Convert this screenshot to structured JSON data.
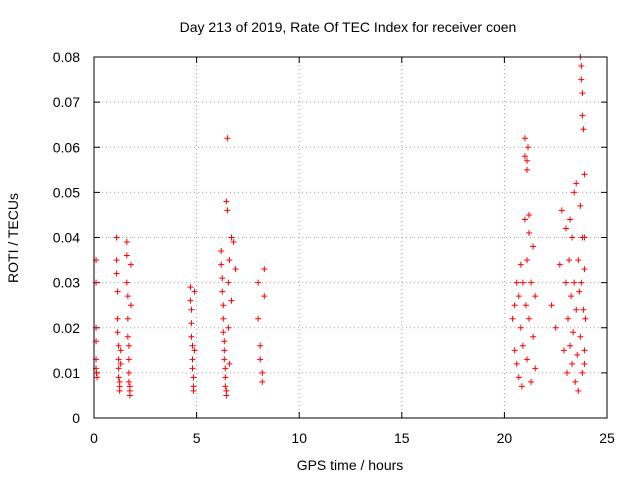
{
  "chart_data": {
    "type": "scatter",
    "title": "Day 213 of 2019, Rate Of TEC Index for receiver coen",
    "xlabel": "GPS time / hours",
    "ylabel": "ROTI / TECUs",
    "xlim": [
      0,
      25
    ],
    "ylim": [
      0,
      0.08
    ],
    "xticks": [
      0,
      5,
      10,
      15,
      20,
      25
    ],
    "yticks": [
      0,
      0.01,
      0.02,
      0.03,
      0.04,
      0.05,
      0.06,
      0.07,
      0.08
    ],
    "xtick_labels": [
      "0",
      "5",
      "10",
      "15",
      "20",
      "25"
    ],
    "ytick_labels": [
      "0",
      "0.01",
      "0.02",
      "0.03",
      "0.04",
      "0.05",
      "0.06",
      "0.07",
      "0.08"
    ],
    "grid": true,
    "marker": "+",
    "series_color": "#ff0000",
    "series": [
      {
        "name": "ROTI",
        "x": [
          0.1,
          0.1,
          0.1,
          0.1,
          0.1,
          0.1,
          0.12,
          0.15,
          1.1,
          1.1,
          1.1,
          1.15,
          1.15,
          1.15,
          1.2,
          1.2,
          1.2,
          1.2,
          1.25,
          1.25,
          1.25,
          1.3,
          1.3,
          1.6,
          1.6,
          1.6,
          1.65,
          1.65,
          1.65,
          1.7,
          1.7,
          1.7,
          1.7,
          1.75,
          1.75,
          1.75,
          1.8,
          1.8,
          4.7,
          4.7,
          4.75,
          4.75,
          4.75,
          4.8,
          4.8,
          4.8,
          4.85,
          4.85,
          4.85,
          4.9,
          4.9,
          6.2,
          6.2,
          6.25,
          6.25,
          6.3,
          6.3,
          6.3,
          6.35,
          6.35,
          6.35,
          6.4,
          6.4,
          6.4,
          6.45,
          6.45,
          6.45,
          6.5,
          6.5,
          6.55,
          6.55,
          6.6,
          6.6,
          6.7,
          6.7,
          6.8,
          6.9,
          8.0,
          8.0,
          8.1,
          8.1,
          8.2,
          8.2,
          8.3,
          8.3,
          20.4,
          20.5,
          20.5,
          20.6,
          20.6,
          20.7,
          20.7,
          20.8,
          20.8,
          20.85,
          20.9,
          20.9,
          21.0,
          21.0,
          21.0,
          21.05,
          21.1,
          21.1,
          21.2,
          21.2,
          21.3,
          21.3,
          21.4,
          21.4,
          21.5,
          21.5,
          22.3,
          22.5,
          22.7,
          22.8,
          22.9,
          23.0,
          23.0,
          23.05,
          23.1,
          23.15,
          23.2,
          23.2,
          23.25,
          23.3,
          23.3,
          23.35,
          23.4,
          23.4,
          23.45,
          23.5,
          23.5,
          23.55,
          23.6,
          23.6,
          23.65,
          23.7,
          23.7,
          23.75,
          23.8,
          23.8,
          23.85,
          23.9,
          23.9,
          23.9,
          23.95,
          21.1,
          21.1,
          21.15,
          21.2,
          23.7,
          23.75,
          23.75,
          23.8,
          23.8,
          23.85,
          23.9,
          23.9
        ],
        "y": [
          0.035,
          0.03,
          0.02,
          0.017,
          0.013,
          0.011,
          0.01,
          0.009,
          0.04,
          0.035,
          0.032,
          0.028,
          0.022,
          0.019,
          0.016,
          0.013,
          0.011,
          0.009,
          0.008,
          0.007,
          0.006,
          0.012,
          0.015,
          0.039,
          0.036,
          0.03,
          0.027,
          0.022,
          0.018,
          0.016,
          0.013,
          0.01,
          0.008,
          0.007,
          0.006,
          0.005,
          0.034,
          0.025,
          0.029,
          0.026,
          0.024,
          0.021,
          0.018,
          0.016,
          0.013,
          0.011,
          0.009,
          0.007,
          0.006,
          0.028,
          0.015,
          0.037,
          0.034,
          0.031,
          0.028,
          0.025,
          0.022,
          0.019,
          0.017,
          0.015,
          0.013,
          0.011,
          0.009,
          0.007,
          0.006,
          0.005,
          0.048,
          0.046,
          0.062,
          0.03,
          0.02,
          0.035,
          0.012,
          0.04,
          0.026,
          0.039,
          0.033,
          0.03,
          0.022,
          0.016,
          0.013,
          0.01,
          0.008,
          0.033,
          0.027,
          0.022,
          0.025,
          0.015,
          0.03,
          0.012,
          0.027,
          0.009,
          0.034,
          0.02,
          0.007,
          0.03,
          0.016,
          0.062,
          0.058,
          0.044,
          0.025,
          0.035,
          0.013,
          0.041,
          0.022,
          0.03,
          0.008,
          0.038,
          0.018,
          0.027,
          0.011,
          0.025,
          0.02,
          0.034,
          0.046,
          0.015,
          0.042,
          0.03,
          0.01,
          0.022,
          0.035,
          0.044,
          0.016,
          0.027,
          0.04,
          0.012,
          0.019,
          0.05,
          0.03,
          0.008,
          0.052,
          0.024,
          0.014,
          0.035,
          0.006,
          0.028,
          0.047,
          0.018,
          0.03,
          0.04,
          0.01,
          0.024,
          0.033,
          0.015,
          0.054,
          0.022,
          0.057,
          0.055,
          0.06,
          0.045,
          0.08,
          0.078,
          0.075,
          0.072,
          0.067,
          0.064,
          0.04,
          0.012
        ]
      }
    ]
  }
}
